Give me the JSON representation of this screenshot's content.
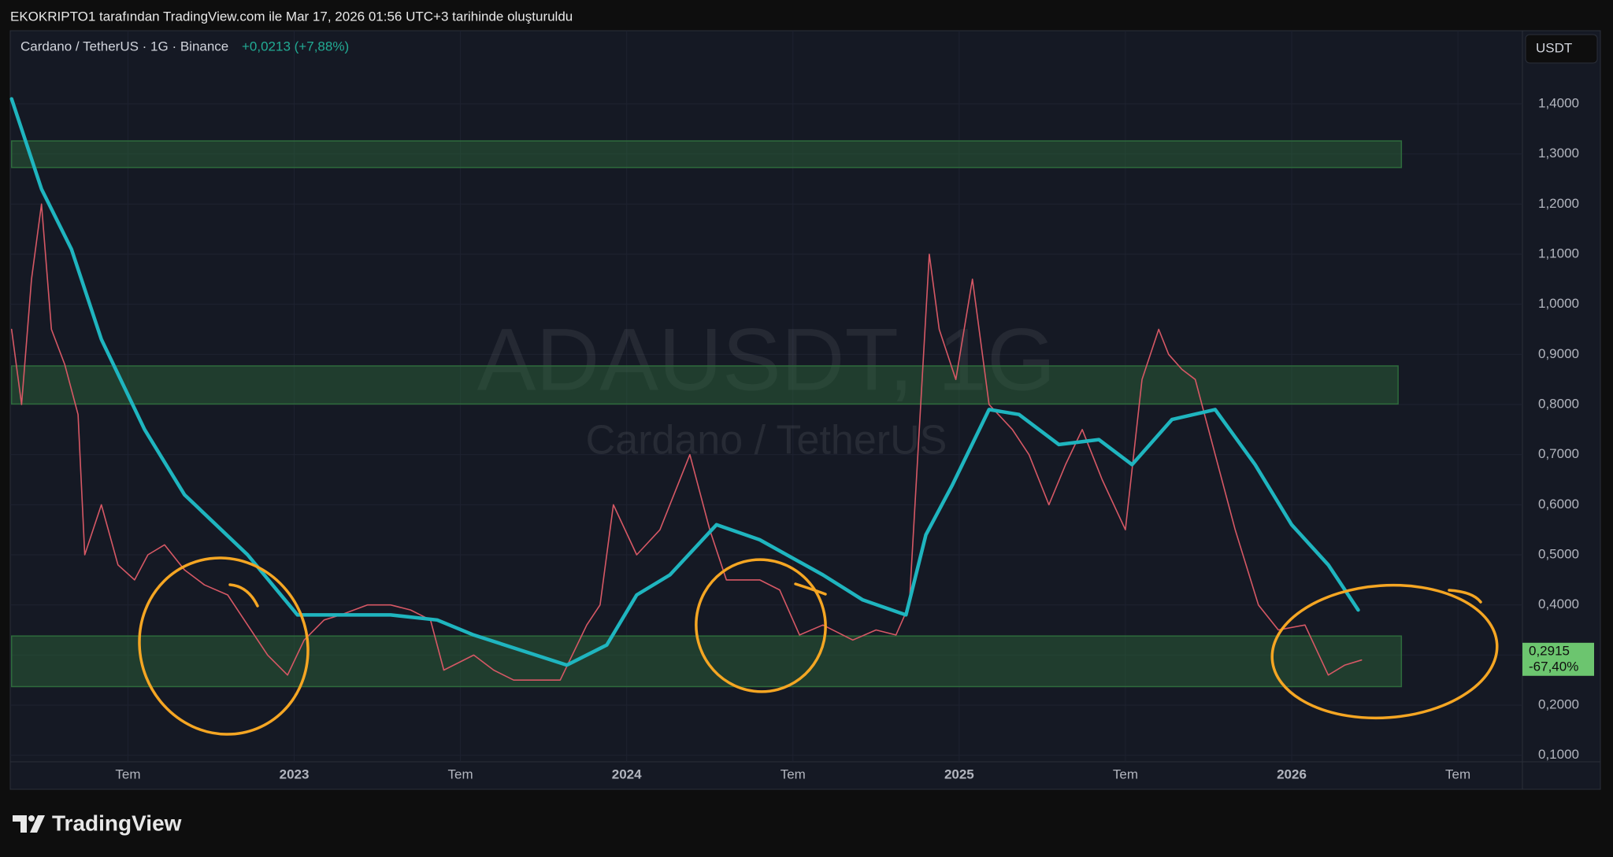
{
  "header": {
    "text": "EKOKRIPTO1 tarafından TradingView.com ile Mar 17, 2026 01:56 UTC+3 tarihinde oluşturuldu"
  },
  "legend": {
    "symbol": "Cardano / TetherUS · 1G · Binance",
    "change": "+0,0213 (+7,88%)"
  },
  "currency_button": "USDT",
  "watermark": {
    "title": "ADAUSDT, 1G",
    "subtitle": "Cardano / TetherUS"
  },
  "brand": "TradingView",
  "chart_data": {
    "type": "line",
    "xlim": [
      2022.146,
      2026.694
    ],
    "ylim": [
      0.087,
      1.546
    ],
    "grid": true,
    "xticks": [
      {
        "value": 2022.5,
        "label": "Tem"
      },
      2023,
      {
        "value": 2023.5,
        "label": "Tem"
      },
      2024,
      {
        "value": 2024.5,
        "label": "Tem"
      },
      2025,
      {
        "value": 2025.5,
        "label": "Tem"
      },
      2026,
      {
        "value": 2026.5,
        "label": "Tem"
      }
    ],
    "yticks": [
      {
        "value": 0.1,
        "label": "0,1000"
      },
      {
        "value": 0.2,
        "label": "0,2000"
      },
      {
        "value": 0.3,
        "label": "0,3000"
      },
      {
        "value": 0.4,
        "label": "0,4000"
      },
      {
        "value": 0.5,
        "label": "0,5000"
      },
      {
        "value": 0.6,
        "label": "0,6000"
      },
      {
        "value": 0.7,
        "label": "0,7000"
      },
      {
        "value": 0.8,
        "label": "0,8000"
      },
      {
        "value": 0.9,
        "label": "0,9000"
      },
      {
        "value": 1.0,
        "label": "1,0000"
      },
      {
        "value": 1.1,
        "label": "1,1000"
      },
      {
        "value": 1.2,
        "label": "1,2000"
      },
      {
        "value": 1.3,
        "label": "1,3000"
      },
      {
        "value": 1.4,
        "label": "1,4000"
      }
    ],
    "zone_color": "#2e6b3c",
    "zones": [
      {
        "xlim": [
          2022.15,
          2026.33
        ],
        "ylim": [
          1.273,
          1.326
        ]
      },
      {
        "xlim": [
          2022.15,
          2026.32
        ],
        "ylim": [
          0.801,
          0.877
        ]
      },
      {
        "xlim": [
          2022.15,
          2026.33
        ],
        "ylim": [
          0.237,
          0.338
        ]
      }
    ],
    "series": [
      {
        "color": "#d65865",
        "x": [
          2022.15,
          2022.18,
          2022.21,
          2022.24,
          2022.27,
          2022.31,
          2022.35,
          2022.37,
          2022.42,
          2022.47,
          2022.52,
          2022.56,
          2022.61,
          2022.67,
          2022.73,
          2022.8,
          2022.86,
          2022.92,
          2022.98,
          2023.03,
          2023.09,
          2023.14,
          2023.22,
          2023.29,
          2023.35,
          2023.41,
          2023.45,
          2023.54,
          2023.6,
          2023.66,
          2023.73,
          2023.8,
          2023.88,
          2023.92,
          2023.96,
          2024.03,
          2024.1,
          2024.19,
          2024.25,
          2024.3,
          2024.4,
          2024.46,
          2024.52,
          2024.59,
          2024.68,
          2024.75,
          2024.81,
          2024.85,
          2024.88,
          2024.91,
          2024.94,
          2024.99,
          2025.04,
          2025.09,
          2025.16,
          2025.21,
          2025.27,
          2025.32,
          2025.37,
          2025.43,
          2025.5,
          2025.55,
          2025.6,
          2025.63,
          2025.67,
          2025.71,
          2025.77,
          2025.83,
          2025.9,
          2025.96,
          2026.04,
          2026.11,
          2026.16,
          2026.21
        ],
        "values": [
          0.95,
          0.8,
          1.05,
          1.2,
          0.95,
          0.88,
          0.78,
          0.5,
          0.6,
          0.48,
          0.45,
          0.5,
          0.52,
          0.47,
          0.44,
          0.42,
          0.36,
          0.3,
          0.26,
          0.33,
          0.37,
          0.38,
          0.4,
          0.4,
          0.39,
          0.37,
          0.27,
          0.3,
          0.27,
          0.25,
          0.25,
          0.25,
          0.36,
          0.4,
          0.6,
          0.5,
          0.55,
          0.7,
          0.55,
          0.45,
          0.45,
          0.43,
          0.34,
          0.36,
          0.33,
          0.35,
          0.34,
          0.4,
          0.75,
          1.1,
          0.95,
          0.85,
          1.05,
          0.8,
          0.75,
          0.7,
          0.6,
          0.68,
          0.75,
          0.65,
          0.55,
          0.85,
          0.95,
          0.9,
          0.87,
          0.85,
          0.7,
          0.55,
          0.4,
          0.35,
          0.36,
          0.26,
          0.28,
          0.29
        ]
      },
      {
        "color": "#1fb5bf",
        "x": [
          2022.15,
          2022.24,
          2022.33,
          2022.42,
          2022.55,
          2022.67,
          2022.86,
          2023.01,
          2023.17,
          2023.29,
          2023.43,
          2023.54,
          2023.82,
          2023.94,
          2024.03,
          2024.13,
          2024.27,
          2024.4,
          2024.59,
          2024.71,
          2024.84,
          2024.9,
          2024.98,
          2025.09,
          2025.18,
          2025.3,
          2025.42,
          2025.52,
          2025.64,
          2025.77,
          2025.89,
          2026.0,
          2026.11,
          2026.2
        ],
        "values": [
          1.41,
          1.23,
          1.11,
          0.93,
          0.75,
          0.62,
          0.5,
          0.38,
          0.38,
          0.38,
          0.37,
          0.34,
          0.28,
          0.32,
          0.42,
          0.46,
          0.56,
          0.53,
          0.46,
          0.41,
          0.38,
          0.54,
          0.64,
          0.79,
          0.78,
          0.72,
          0.73,
          0.68,
          0.77,
          0.79,
          0.68,
          0.56,
          0.48,
          0.39
        ]
      }
    ],
    "last_price": {
      "value": 0.2915,
      "label": "0,2915",
      "change": "-67,40%"
    }
  }
}
